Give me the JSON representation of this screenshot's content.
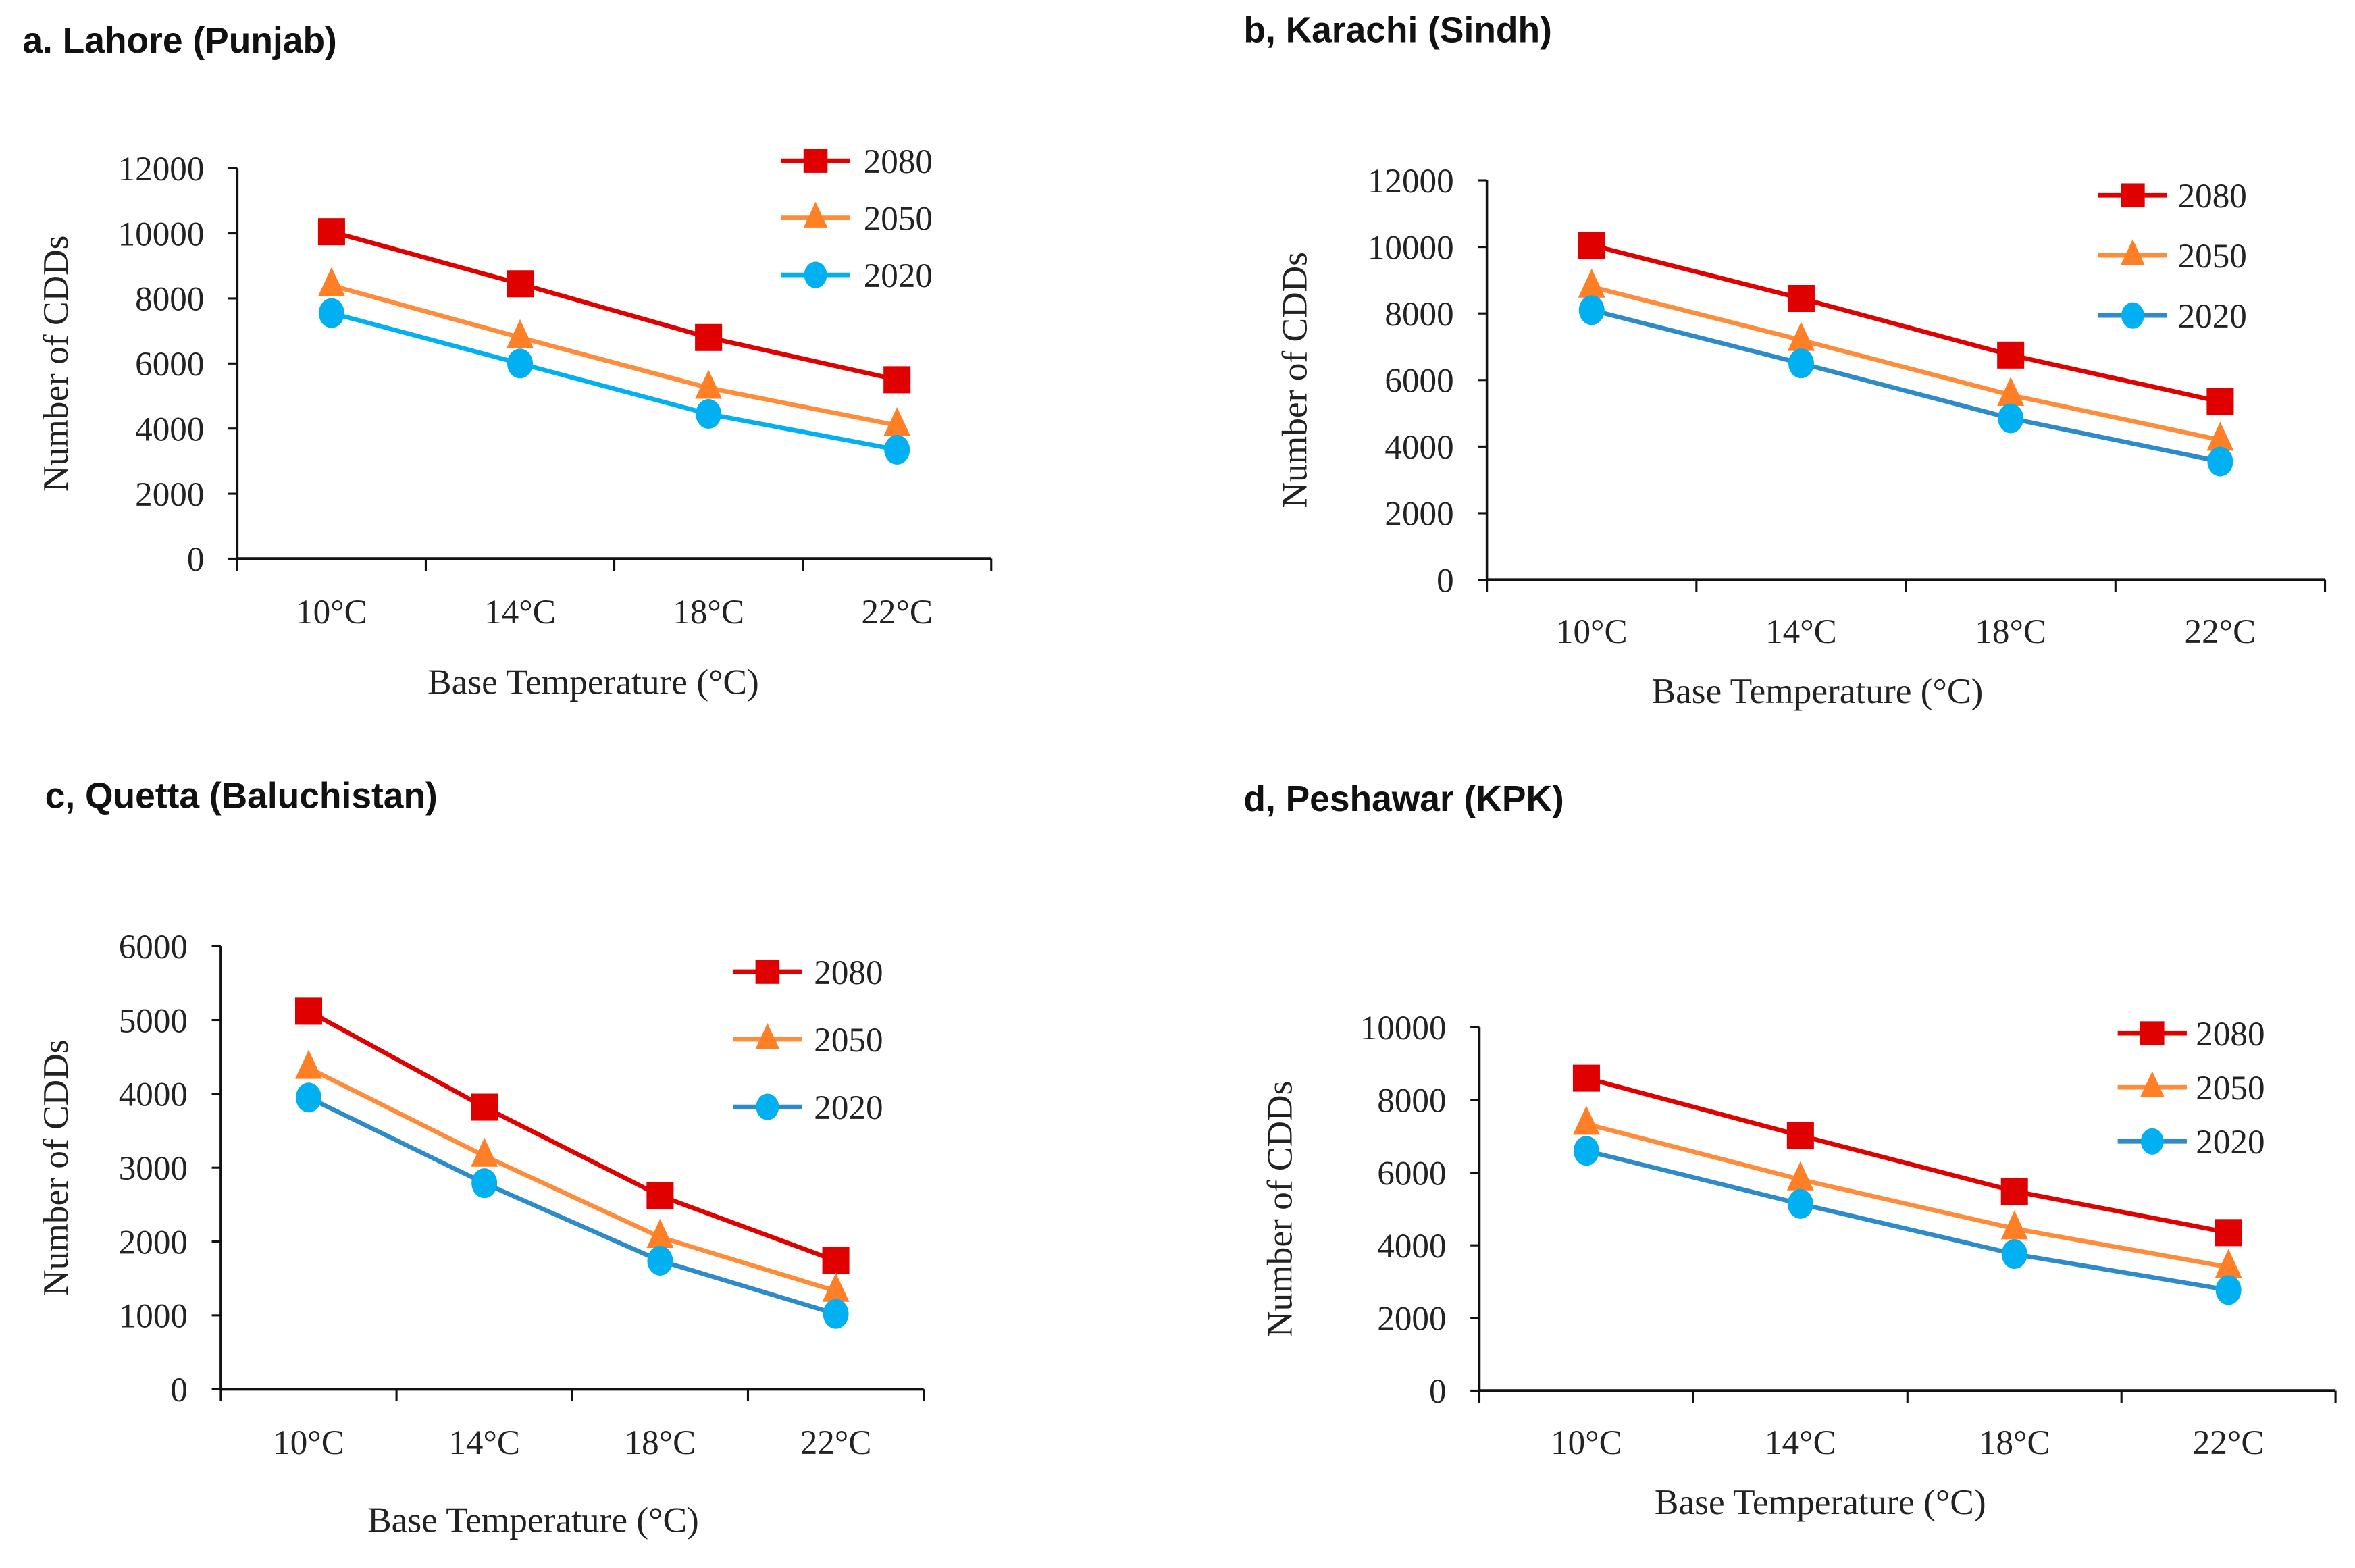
{
  "chart_data": [
    {
      "type": "line",
      "title": "a. Lahore (Punjab)",
      "xlabel": "Base Temperature (°C)",
      "ylabel": "Number of CDDs",
      "categories": [
        "10°C",
        "14°C",
        "18°C",
        "22°C"
      ],
      "ylim": [
        0,
        12000
      ],
      "yticks": [
        0,
        2000,
        4000,
        6000,
        8000,
        10000,
        12000
      ],
      "legend": "top-right",
      "grid": false,
      "series": [
        {
          "name": "2080",
          "marker": "square",
          "color": "#e00000",
          "line_color": "#e00000",
          "values": [
            10050,
            8450,
            6800,
            5500
          ]
        },
        {
          "name": "2050",
          "marker": "triangle",
          "color": "#ff7f27",
          "line_color": "#ff8c3a",
          "values": [
            8400,
            6800,
            5250,
            4100
          ]
        },
        {
          "name": "2020",
          "marker": "circle",
          "color": "#00b0f0",
          "line_color": "#00b0f0",
          "values": [
            7550,
            6000,
            4450,
            3350
          ]
        }
      ]
    },
    {
      "type": "line",
      "title": "b, Karachi (Sindh)",
      "xlabel": "Base Temperature (°C)",
      "ylabel": "Number of CDDs",
      "categories": [
        "10°C",
        "14°C",
        "18°C",
        "22°C"
      ],
      "ylim": [
        0,
        12000
      ],
      "yticks": [
        0,
        2000,
        4000,
        6000,
        8000,
        10000,
        12000
      ],
      "legend": "top-right",
      "grid": false,
      "series": [
        {
          "name": "2080",
          "marker": "square",
          "color": "#e00000",
          "line_color": "#e00000",
          "values": [
            10050,
            8450,
            6750,
            5350
          ]
        },
        {
          "name": "2050",
          "marker": "triangle",
          "color": "#ff7f27",
          "line_color": "#ff8c3a",
          "values": [
            8800,
            7200,
            5550,
            4200
          ]
        },
        {
          "name": "2020",
          "marker": "circle",
          "color": "#00b0f0",
          "line_color": "#2e8bc9",
          "values": [
            8100,
            6500,
            4850,
            3550
          ]
        }
      ]
    },
    {
      "type": "line",
      "title": "c, Quetta (Baluchistan)",
      "xlabel": "Base Temperature (°C)",
      "ylabel": "Number of CDDs",
      "categories": [
        "10°C",
        "14°C",
        "18°C",
        "22°C"
      ],
      "ylim": [
        0,
        6000
      ],
      "yticks": [
        0,
        1000,
        2000,
        3000,
        4000,
        5000,
        6000
      ],
      "legend": "top-right",
      "grid": false,
      "series": [
        {
          "name": "2080",
          "marker": "square",
          "color": "#e00000",
          "line_color": "#e00000",
          "values": [
            5120,
            3820,
            2620,
            1740
          ]
        },
        {
          "name": "2050",
          "marker": "triangle",
          "color": "#ff7f27",
          "line_color": "#ff8c3a",
          "values": [
            4350,
            3160,
            2060,
            1330
          ]
        },
        {
          "name": "2020",
          "marker": "circle",
          "color": "#00b0f0",
          "line_color": "#2e8bc9",
          "values": [
            3950,
            2790,
            1740,
            1020
          ]
        }
      ]
    },
    {
      "type": "line",
      "title": "d, Peshawar (KPK)",
      "xlabel": "Base Temperature (°C)",
      "ylabel": "Number of CDDs",
      "categories": [
        "10°C",
        "14°C",
        "18°C",
        "22°C"
      ],
      "ylim": [
        0,
        10000
      ],
      "yticks": [
        0,
        2000,
        4000,
        6000,
        8000,
        10000
      ],
      "legend": "top-right",
      "grid": false,
      "series": [
        {
          "name": "2080",
          "marker": "square",
          "color": "#e00000",
          "line_color": "#e00000",
          "values": [
            8600,
            7020,
            5490,
            4350
          ]
        },
        {
          "name": "2050",
          "marker": "triangle",
          "color": "#ff7f27",
          "line_color": "#ff8c3a",
          "values": [
            7340,
            5810,
            4460,
            3400
          ]
        },
        {
          "name": "2020",
          "marker": "circle",
          "color": "#00b0f0",
          "line_color": "#2e8bc9",
          "values": [
            6600,
            5140,
            3760,
            2770
          ]
        }
      ]
    }
  ]
}
